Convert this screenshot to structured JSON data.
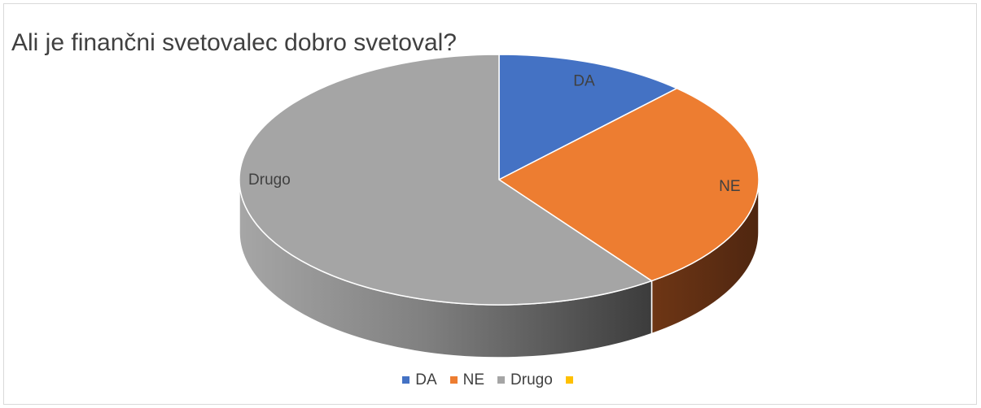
{
  "chart_data": {
    "type": "pie",
    "title": "Ali je finančni svetovalec dobro svetoval?",
    "style": "3d",
    "start_angle_deg": 0,
    "categories": [
      "DA",
      "NE",
      "Drugo",
      ""
    ],
    "values": [
      12,
      28,
      60,
      0
    ],
    "data_labels": [
      "DA",
      "NE",
      "Drugo",
      ""
    ],
    "colors": [
      "#4472C4",
      "#ED7D31",
      "#A5A5A5",
      "#FFC000"
    ],
    "legend_position": "bottom"
  }
}
